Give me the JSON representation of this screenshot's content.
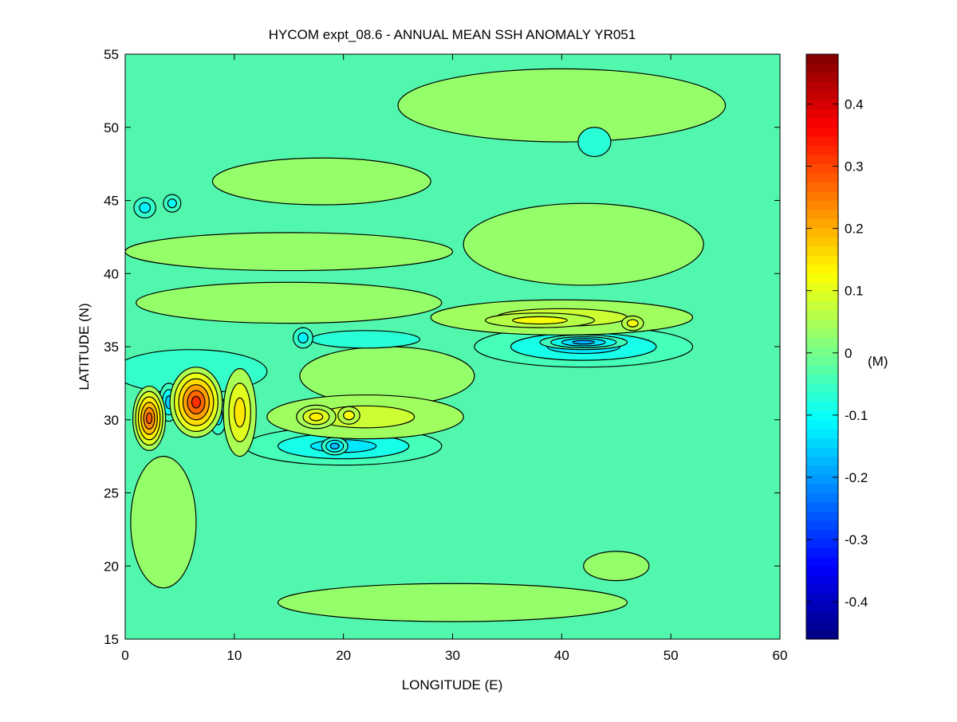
{
  "chart_data": {
    "type": "heatmap",
    "subtype": "filled-contour-map",
    "title": "HYCOM expt_08.6 - ANNUAL MEAN SSH ANOMALY YR051",
    "xlabel": "LONGITUDE (E)",
    "ylabel": "LATITUDE (N)",
    "xlim": [
      0,
      60
    ],
    "ylim": [
      15,
      55
    ],
    "xticks": [
      "0",
      "10",
      "20",
      "30",
      "40",
      "50",
      "60"
    ],
    "yticks": [
      "15",
      "20",
      "25",
      "30",
      "35",
      "40",
      "45",
      "50",
      "55"
    ],
    "colorbar": {
      "label": "(M)",
      "colormap": "jet",
      "range": [
        -0.46,
        0.48
      ],
      "ticks": [
        "-0.4",
        "-0.3",
        "-0.2",
        "-0.1",
        "0",
        "0.1",
        "0.2",
        "0.3",
        "0.4"
      ]
    },
    "contour_interval": 0.05,
    "background_value": -0.01,
    "features": [
      {
        "name": "north-band-1",
        "lon": 15,
        "lat": 41.5,
        "rlon": 15,
        "rlat": 1.3,
        "value": 0.03
      },
      {
        "name": "north-band-2",
        "lon": 18,
        "lat": 46.3,
        "rlon": 10,
        "rlat": 1.6,
        "value": 0.03
      },
      {
        "name": "north-patches",
        "lon": 40,
        "lat": 51.5,
        "rlon": 15,
        "rlat": 2.5,
        "value": 0.03
      },
      {
        "name": "east-patch",
        "lon": 42,
        "lat": 42,
        "rlon": 11,
        "rlat": 2.8,
        "value": 0.03
      },
      {
        "name": "mid-band",
        "lon": 15,
        "lat": 38,
        "rlon": 14,
        "rlat": 1.4,
        "value": 0.03
      },
      {
        "name": "central-patch",
        "lon": 24,
        "lat": 33,
        "rlon": 8,
        "rlat": 2,
        "value": 0.03
      },
      {
        "name": "southwest-patch",
        "lon": 3.5,
        "lat": 23,
        "rlon": 3,
        "rlat": 4.5,
        "value": 0.03
      },
      {
        "name": "south-band",
        "lon": 30,
        "lat": 17.5,
        "rlon": 16,
        "rlat": 1.3,
        "value": 0.03
      },
      {
        "name": "south-patch",
        "lon": 45,
        "lat": 20,
        "rlon": 3,
        "rlat": 1,
        "value": 0.03
      },
      {
        "name": "west-meander",
        "lon": 6,
        "lat": 33.3,
        "rlon": 7,
        "rlat": 1.5,
        "value": -0.06
      },
      {
        "name": "mid-trough",
        "lon": 22,
        "lat": 35.5,
        "rlon": 5,
        "rlat": 0.6,
        "value": -0.07
      },
      {
        "name": "north-eddy",
        "lon": 43,
        "lat": 49,
        "rlon": 1.5,
        "rlat": 1,
        "value": -0.07
      },
      {
        "name": "south-trough",
        "lon": 20,
        "lat": 28.2,
        "rlon": 9,
        "rlat": 1.3,
        "value": -0.13
      },
      {
        "name": "south-trough-core",
        "lon": 19.2,
        "lat": 28.2,
        "rlon": 1.2,
        "rlat": 0.6,
        "value": -0.17
      },
      {
        "name": "east-trough",
        "lon": 42,
        "lat": 35,
        "rlon": 10,
        "rlat": 1.4,
        "value": -0.13
      },
      {
        "name": "east-trough-core",
        "lon": 42,
        "lat": 35.3,
        "rlon": 4,
        "rlat": 0.5,
        "value": -0.18
      },
      {
        "name": "cyclonic-eddy-1",
        "lon": 4,
        "lat": 31.2,
        "rlon": 0.9,
        "rlat": 1.3,
        "value": -0.15
      },
      {
        "name": "cyclonic-eddy-2",
        "lon": 8.5,
        "lat": 30.3,
        "rlon": 0.8,
        "rlat": 1.3,
        "value": -0.12
      },
      {
        "name": "cyclonic-eddy-3",
        "lon": 1.8,
        "lat": 44.5,
        "rlon": 1,
        "rlat": 0.7,
        "value": -0.12
      },
      {
        "name": "cyclonic-eddy-4",
        "lon": 4.3,
        "lat": 44.8,
        "rlon": 0.8,
        "rlat": 0.6,
        "value": -0.1
      },
      {
        "name": "cyclonic-eddy-5",
        "lon": 16.3,
        "lat": 35.6,
        "rlon": 0.9,
        "rlat": 0.7,
        "value": -0.12
      },
      {
        "name": "jet-band-south",
        "lon": 22,
        "lat": 30.2,
        "rlon": 9,
        "rlat": 1.5,
        "value": 0.08
      },
      {
        "name": "jet-band-east",
        "lon": 40,
        "lat": 37,
        "rlon": 12,
        "rlat": 1.2,
        "value": 0.08
      },
      {
        "name": "jet-east-core",
        "lon": 38,
        "lat": 36.8,
        "rlon": 5,
        "rlat": 0.5,
        "value": 0.12
      },
      {
        "name": "jet-east-core-2",
        "lon": 46.5,
        "lat": 36.6,
        "rlon": 1,
        "rlat": 0.5,
        "value": 0.12
      },
      {
        "name": "jet-south-core",
        "lon": 17.5,
        "lat": 30.2,
        "rlon": 1.8,
        "rlat": 0.8,
        "value": 0.14
      },
      {
        "name": "jet-south-core-2",
        "lon": 20.5,
        "lat": 30.3,
        "rlon": 1,
        "rlat": 0.6,
        "value": 0.12
      },
      {
        "name": "anticyclonic-eddy-3",
        "lon": 10.5,
        "lat": 30.5,
        "rlon": 1.5,
        "rlat": 3,
        "value": 0.15
      },
      {
        "name": "anticyclonic-eddy-1",
        "lon": 2.2,
        "lat": 30.1,
        "rlon": 1.5,
        "rlat": 2.2,
        "value": 0.28
      },
      {
        "name": "anticyclonic-eddy-2",
        "lon": 6.5,
        "lat": 31.2,
        "rlon": 2.4,
        "rlat": 2.4,
        "value": 0.32
      }
    ]
  }
}
